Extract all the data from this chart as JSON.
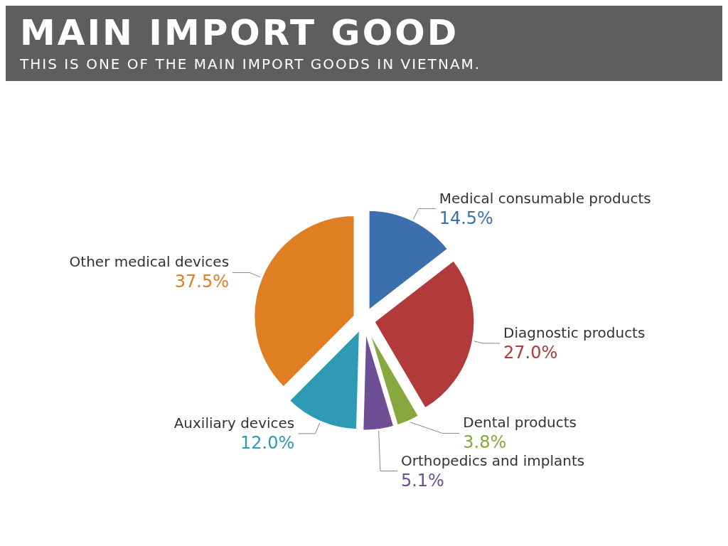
{
  "chart_data": {
    "type": "pie",
    "title": "MAIN IMPORT GOOD",
    "subtitle": "THIS IS ONE OF THE MAIN IMPORT GOODS IN VIETNAM.",
    "categories": [
      "Medical consumable products",
      "Diagnostic products",
      "Dental products",
      "Orthopedics and implants",
      "Auxiliary devices",
      "Other medical devices"
    ],
    "values": [
      14.5,
      27.0,
      3.8,
      5.1,
      12.0,
      37.5
    ],
    "value_labels": [
      "14.5%",
      "27.0%",
      "3.8%",
      "5.1%",
      "12.0%",
      "37.5%"
    ],
    "colors": [
      "#3b6fad",
      "#b23a3a",
      "#86a83e",
      "#6e4f96",
      "#2e9ab4",
      "#e07f22"
    ],
    "legend": false
  }
}
